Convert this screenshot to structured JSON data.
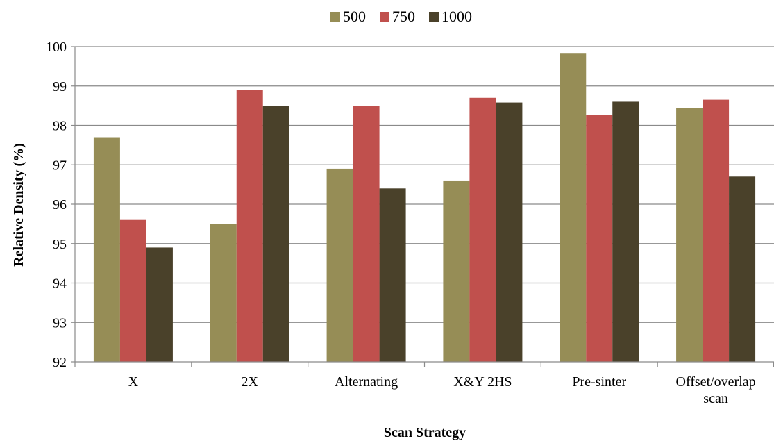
{
  "chart_data": {
    "type": "bar",
    "categories": [
      [
        "X"
      ],
      [
        "2X"
      ],
      [
        "Alternating"
      ],
      [
        "X&Y 2HS"
      ],
      [
        "Pre-sinter"
      ],
      [
        "Offset/overlap",
        "scan"
      ]
    ],
    "series": [
      {
        "name": "500",
        "color": "#968D56",
        "values": [
          97.7,
          95.5,
          96.9,
          96.6,
          99.82,
          98.44
        ]
      },
      {
        "name": "750",
        "color": "#C0504D",
        "values": [
          95.6,
          98.9,
          98.5,
          98.7,
          98.27,
          98.65
        ]
      },
      {
        "name": "1000",
        "color": "#4A412A",
        "values": [
          94.9,
          98.5,
          96.4,
          98.58,
          98.6,
          96.7
        ]
      }
    ],
    "xlabel": "Scan Strategy",
    "ylabel": "Relative Density (%)",
    "ylim": [
      92,
      100
    ],
    "yticks": [
      92,
      93,
      94,
      95,
      96,
      97,
      98,
      99,
      100
    ],
    "grid": true,
    "legend_position": "top-center"
  }
}
